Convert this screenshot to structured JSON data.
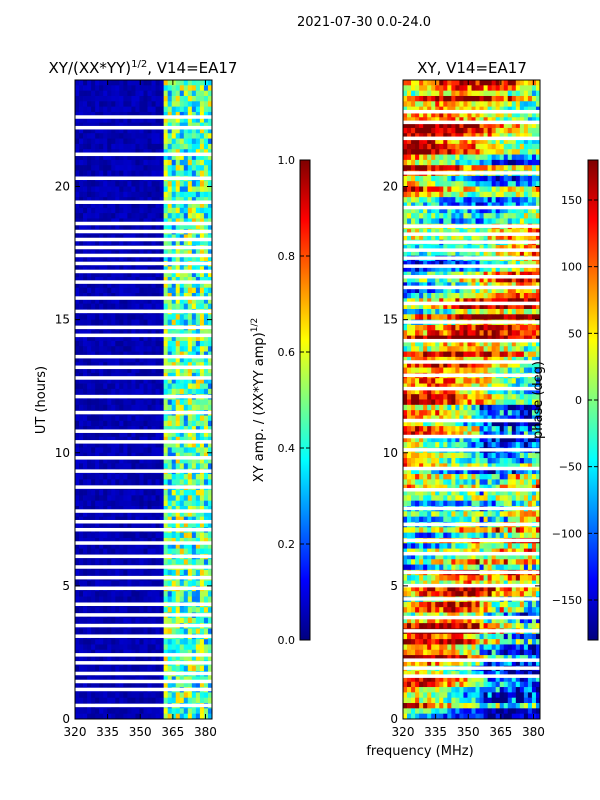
{
  "figure": {
    "suptitle": "2021-07-30 0.0-24.0",
    "xlabel": "frequency (MHz)",
    "ylabel": "UT (hours)"
  },
  "colors": {
    "jet": [
      "#00007f",
      "#0000ff",
      "#007fff",
      "#00ffff",
      "#7fff7f",
      "#ffff00",
      "#ff7f00",
      "#ff0000",
      "#7f0000"
    ],
    "white": "#ffffff",
    "axis": "#000000"
  },
  "chart_data": [
    {
      "type": "heatmap",
      "id": "amp",
      "title_base": "XY/(XX*YY)",
      "title_sup": "1/2",
      "title_tail": ", V14=EA17",
      "x_ticks": [
        320,
        335,
        350,
        365,
        380
      ],
      "y_ticks": [
        0,
        5,
        10,
        15,
        20
      ],
      "x_range": [
        320,
        383
      ],
      "y_range": [
        0,
        24
      ],
      "colorbar": {
        "label": "XY amp. / (XX*YY amp)",
        "label_sup": "1/2",
        "range": [
          0.0,
          1.0
        ],
        "ticks": [
          "0.0",
          "0.2",
          "0.4",
          "0.6",
          "0.8",
          "1.0"
        ]
      },
      "description_values": {
        "low_band_mhz": [
          320,
          360
        ],
        "low_band_level": 0.05,
        "high_band_mhz": [
          360,
          383
        ],
        "high_band_level_range": [
          0.2,
          0.7
        ]
      },
      "flagged_ut_hours": [
        0.5,
        1.1,
        1.4,
        1.7,
        2.1,
        2.4,
        3.1,
        3.5,
        3.9,
        4.3,
        4.9,
        5.3,
        5.7,
        6.1,
        6.6,
        7.1,
        7.4,
        7.8,
        8.7,
        9.3,
        9.8,
        10.4,
        10.8,
        11.5,
        12.1,
        12.8,
        13.2,
        13.6,
        14.4,
        14.7,
        15.3,
        15.8,
        16.4,
        16.8,
        17.1,
        17.4,
        17.7,
        18.0,
        18.3,
        18.6,
        19.4,
        20.3,
        21.2,
        22.2,
        22.6
      ]
    },
    {
      "type": "heatmap",
      "id": "phase",
      "title": "XY, V14=EA17",
      "x_ticks": [
        320,
        335,
        350,
        365,
        380
      ],
      "y_ticks": [
        0,
        5,
        10,
        15,
        20
      ],
      "x_range": [
        320,
        383
      ],
      "y_range": [
        0,
        24
      ],
      "colorbar": {
        "label": "phase (deg)",
        "range": [
          -180,
          180
        ],
        "ticks": [
          "−150",
          "−100",
          "−50",
          "0",
          "50",
          "100",
          "150"
        ],
        "tick_values": [
          -150,
          -100,
          -50,
          0,
          50,
          100,
          150
        ]
      },
      "flagged_ut_hours": [
        1.6,
        1.9,
        2.2,
        3.3,
        3.8,
        4.5,
        5.0,
        5.5,
        6.2,
        6.7,
        7.3,
        7.9,
        8.6,
        9.4,
        10.1,
        10.6,
        11.2,
        12.4,
        12.9,
        13.4,
        14.2,
        14.9,
        15.6,
        16.2,
        16.6,
        17.0,
        17.3,
        17.6,
        17.9,
        18.2,
        18.5,
        19.2,
        20.5,
        21.8,
        22.4,
        22.8
      ]
    }
  ]
}
